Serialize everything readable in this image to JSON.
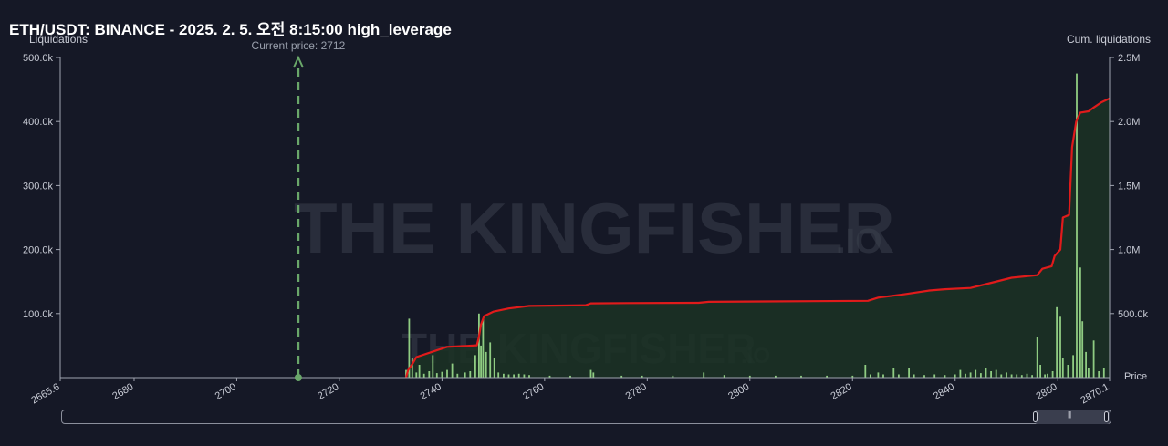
{
  "chart_data": {
    "type": "bar",
    "title": "ETH/USDT: BINANCE - 2025. 2. 5. 오전 8:15:00 high_leverage",
    "y_left_label": "Liquidations",
    "y_right_label": "Cum. liquidations",
    "x_label": "Price",
    "current_price_label": "Current price: 2712",
    "current_price": 2712,
    "x_range": [
      2665.6,
      2870.1
    ],
    "x_ticks": [
      "2665.6",
      "2680",
      "2700",
      "2720",
      "2740",
      "2760",
      "2780",
      "2800",
      "2820",
      "2840",
      "2860",
      "2870.1"
    ],
    "y_left_range": [
      0,
      500000
    ],
    "y_left_ticks": [
      "100.0k",
      "200.0k",
      "300.0k",
      "400.0k",
      "500.0k"
    ],
    "y_right_range": [
      0,
      2500000
    ],
    "y_right_ticks": [
      "500.0k",
      "1.0M",
      "1.5M",
      "2.0M",
      "2.5M"
    ],
    "grid": false,
    "bars": [
      {
        "x": 2733.0,
        "y": 12000
      },
      {
        "x": 2733.6,
        "y": 92000
      },
      {
        "x": 2734.2,
        "y": 30000
      },
      {
        "x": 2735.0,
        "y": 8000
      },
      {
        "x": 2735.6,
        "y": 20000
      },
      {
        "x": 2736.5,
        "y": 6000
      },
      {
        "x": 2737.5,
        "y": 10000
      },
      {
        "x": 2738.2,
        "y": 35000
      },
      {
        "x": 2739.0,
        "y": 7000
      },
      {
        "x": 2740.0,
        "y": 9000
      },
      {
        "x": 2741.0,
        "y": 12000
      },
      {
        "x": 2742.0,
        "y": 22000
      },
      {
        "x": 2743.0,
        "y": 6000
      },
      {
        "x": 2744.5,
        "y": 8000
      },
      {
        "x": 2745.5,
        "y": 10000
      },
      {
        "x": 2746.5,
        "y": 35000
      },
      {
        "x": 2747.2,
        "y": 100000
      },
      {
        "x": 2747.6,
        "y": 50000
      },
      {
        "x": 2748.0,
        "y": 92000
      },
      {
        "x": 2748.6,
        "y": 40000
      },
      {
        "x": 2749.4,
        "y": 55000
      },
      {
        "x": 2750.2,
        "y": 30000
      },
      {
        "x": 2751.0,
        "y": 8000
      },
      {
        "x": 2752.0,
        "y": 6000
      },
      {
        "x": 2753.0,
        "y": 5000
      },
      {
        "x": 2754.0,
        "y": 5000
      },
      {
        "x": 2755.0,
        "y": 6000
      },
      {
        "x": 2756.0,
        "y": 5000
      },
      {
        "x": 2757.0,
        "y": 4000
      },
      {
        "x": 2761.0,
        "y": 3000
      },
      {
        "x": 2765.0,
        "y": 3000
      },
      {
        "x": 2769.0,
        "y": 12000
      },
      {
        "x": 2769.5,
        "y": 8000
      },
      {
        "x": 2775.0,
        "y": 3000
      },
      {
        "x": 2779.0,
        "y": 3000
      },
      {
        "x": 2785.0,
        "y": 3000
      },
      {
        "x": 2791.0,
        "y": 8000
      },
      {
        "x": 2795.0,
        "y": 4000
      },
      {
        "x": 2800.0,
        "y": 3000
      },
      {
        "x": 2805.0,
        "y": 3000
      },
      {
        "x": 2810.0,
        "y": 3000
      },
      {
        "x": 2815.0,
        "y": 3000
      },
      {
        "x": 2820.0,
        "y": 3000
      },
      {
        "x": 2822.5,
        "y": 20000
      },
      {
        "x": 2823.5,
        "y": 5000
      },
      {
        "x": 2825.0,
        "y": 8000
      },
      {
        "x": 2826.0,
        "y": 5000
      },
      {
        "x": 2828.0,
        "y": 15000
      },
      {
        "x": 2829.0,
        "y": 5000
      },
      {
        "x": 2831.0,
        "y": 15000
      },
      {
        "x": 2832.0,
        "y": 5000
      },
      {
        "x": 2834.0,
        "y": 4000
      },
      {
        "x": 2836.0,
        "y": 5000
      },
      {
        "x": 2838.0,
        "y": 4000
      },
      {
        "x": 2840.0,
        "y": 5000
      },
      {
        "x": 2841.0,
        "y": 12000
      },
      {
        "x": 2842.0,
        "y": 6000
      },
      {
        "x": 2843.0,
        "y": 8000
      },
      {
        "x": 2844.0,
        "y": 12000
      },
      {
        "x": 2845.0,
        "y": 7000
      },
      {
        "x": 2846.0,
        "y": 15000
      },
      {
        "x": 2847.0,
        "y": 10000
      },
      {
        "x": 2848.0,
        "y": 12000
      },
      {
        "x": 2849.0,
        "y": 5000
      },
      {
        "x": 2850.0,
        "y": 8000
      },
      {
        "x": 2851.0,
        "y": 5000
      },
      {
        "x": 2852.0,
        "y": 5000
      },
      {
        "x": 2853.0,
        "y": 4000
      },
      {
        "x": 2854.0,
        "y": 6000
      },
      {
        "x": 2855.0,
        "y": 4000
      },
      {
        "x": 2856.0,
        "y": 64000
      },
      {
        "x": 2856.6,
        "y": 20000
      },
      {
        "x": 2857.5,
        "y": 5000
      },
      {
        "x": 2858.0,
        "y": 6000
      },
      {
        "x": 2859.0,
        "y": 10000
      },
      {
        "x": 2859.8,
        "y": 110000
      },
      {
        "x": 2860.5,
        "y": 95000
      },
      {
        "x": 2861.0,
        "y": 30000
      },
      {
        "x": 2862.0,
        "y": 20000
      },
      {
        "x": 2863.0,
        "y": 35000
      },
      {
        "x": 2863.7,
        "y": 475000
      },
      {
        "x": 2864.4,
        "y": 172000
      },
      {
        "x": 2864.8,
        "y": 88000
      },
      {
        "x": 2865.5,
        "y": 40000
      },
      {
        "x": 2866.0,
        "y": 15000
      },
      {
        "x": 2867.0,
        "y": 58000
      },
      {
        "x": 2868.0,
        "y": 10000
      },
      {
        "x": 2869.0,
        "y": 15000
      }
    ],
    "cumulative": [
      [
        2733.0,
        0
      ],
      [
        2733.4,
        60000
      ],
      [
        2734.2,
        105000
      ],
      [
        2735.0,
        160000
      ],
      [
        2738.0,
        200000
      ],
      [
        2741.0,
        240000
      ],
      [
        2745.0,
        248000
      ],
      [
        2746.8,
        252000
      ],
      [
        2747.2,
        320000
      ],
      [
        2747.6,
        415000
      ],
      [
        2748.2,
        480000
      ],
      [
        2750.0,
        515000
      ],
      [
        2753.0,
        540000
      ],
      [
        2757.0,
        560000
      ],
      [
        2768.0,
        565000
      ],
      [
        2769.0,
        580000
      ],
      [
        2776.0,
        582000
      ],
      [
        2790.0,
        584000
      ],
      [
        2792.0,
        592000
      ],
      [
        2803.0,
        595000
      ],
      [
        2823.0,
        600000
      ],
      [
        2825.0,
        625000
      ],
      [
        2830.0,
        650000
      ],
      [
        2835.0,
        680000
      ],
      [
        2838.0,
        690000
      ],
      [
        2843.0,
        700000
      ],
      [
        2846.0,
        730000
      ],
      [
        2851.0,
        780000
      ],
      [
        2856.0,
        800000
      ],
      [
        2857.0,
        850000
      ],
      [
        2858.8,
        870000
      ],
      [
        2859.4,
        950000
      ],
      [
        2860.5,
        1000000
      ],
      [
        2861.0,
        1250000
      ],
      [
        2862.2,
        1270000
      ],
      [
        2862.8,
        1800000
      ],
      [
        2863.6,
        2000000
      ],
      [
        2864.4,
        2070000
      ],
      [
        2866.0,
        2080000
      ],
      [
        2867.0,
        2110000
      ],
      [
        2868.5,
        2150000
      ],
      [
        2870.1,
        2180000
      ]
    ],
    "colors": {
      "bars": "#8fcc82",
      "cumulative_line": "#e01b1b",
      "cumulative_fill": "#1b3224",
      "current_price": "#6aa76a"
    }
  },
  "watermark": {
    "brand": "THE KINGFISHER",
    "suffix": ".IO"
  }
}
